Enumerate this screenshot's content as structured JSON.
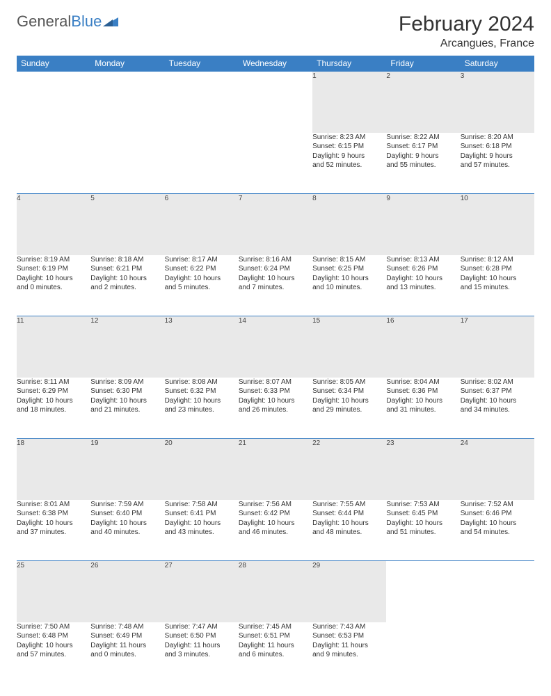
{
  "logo": {
    "part1": "General",
    "part2": "Blue"
  },
  "title": "February 2024",
  "subtitle": "Arcangues, France",
  "colors": {
    "header_bg": "#3a7fc4",
    "daynum_bg": "#e9e9e9",
    "border": "#3a7fc4"
  },
  "fontsize": {
    "title": 30,
    "subtitle": 16,
    "header": 12,
    "daynum": 12,
    "body": 10
  },
  "daysOfWeek": [
    "Sunday",
    "Monday",
    "Tuesday",
    "Wednesday",
    "Thursday",
    "Friday",
    "Saturday"
  ],
  "weeks": [
    [
      null,
      null,
      null,
      null,
      {
        "n": "1",
        "sr": "Sunrise: 8:23 AM",
        "ss": "Sunset: 6:15 PM",
        "d1": "Daylight: 9 hours",
        "d2": "and 52 minutes."
      },
      {
        "n": "2",
        "sr": "Sunrise: 8:22 AM",
        "ss": "Sunset: 6:17 PM",
        "d1": "Daylight: 9 hours",
        "d2": "and 55 minutes."
      },
      {
        "n": "3",
        "sr": "Sunrise: 8:20 AM",
        "ss": "Sunset: 6:18 PM",
        "d1": "Daylight: 9 hours",
        "d2": "and 57 minutes."
      }
    ],
    [
      {
        "n": "4",
        "sr": "Sunrise: 8:19 AM",
        "ss": "Sunset: 6:19 PM",
        "d1": "Daylight: 10 hours",
        "d2": "and 0 minutes."
      },
      {
        "n": "5",
        "sr": "Sunrise: 8:18 AM",
        "ss": "Sunset: 6:21 PM",
        "d1": "Daylight: 10 hours",
        "d2": "and 2 minutes."
      },
      {
        "n": "6",
        "sr": "Sunrise: 8:17 AM",
        "ss": "Sunset: 6:22 PM",
        "d1": "Daylight: 10 hours",
        "d2": "and 5 minutes."
      },
      {
        "n": "7",
        "sr": "Sunrise: 8:16 AM",
        "ss": "Sunset: 6:24 PM",
        "d1": "Daylight: 10 hours",
        "d2": "and 7 minutes."
      },
      {
        "n": "8",
        "sr": "Sunrise: 8:15 AM",
        "ss": "Sunset: 6:25 PM",
        "d1": "Daylight: 10 hours",
        "d2": "and 10 minutes."
      },
      {
        "n": "9",
        "sr": "Sunrise: 8:13 AM",
        "ss": "Sunset: 6:26 PM",
        "d1": "Daylight: 10 hours",
        "d2": "and 13 minutes."
      },
      {
        "n": "10",
        "sr": "Sunrise: 8:12 AM",
        "ss": "Sunset: 6:28 PM",
        "d1": "Daylight: 10 hours",
        "d2": "and 15 minutes."
      }
    ],
    [
      {
        "n": "11",
        "sr": "Sunrise: 8:11 AM",
        "ss": "Sunset: 6:29 PM",
        "d1": "Daylight: 10 hours",
        "d2": "and 18 minutes."
      },
      {
        "n": "12",
        "sr": "Sunrise: 8:09 AM",
        "ss": "Sunset: 6:30 PM",
        "d1": "Daylight: 10 hours",
        "d2": "and 21 minutes."
      },
      {
        "n": "13",
        "sr": "Sunrise: 8:08 AM",
        "ss": "Sunset: 6:32 PM",
        "d1": "Daylight: 10 hours",
        "d2": "and 23 minutes."
      },
      {
        "n": "14",
        "sr": "Sunrise: 8:07 AM",
        "ss": "Sunset: 6:33 PM",
        "d1": "Daylight: 10 hours",
        "d2": "and 26 minutes."
      },
      {
        "n": "15",
        "sr": "Sunrise: 8:05 AM",
        "ss": "Sunset: 6:34 PM",
        "d1": "Daylight: 10 hours",
        "d2": "and 29 minutes."
      },
      {
        "n": "16",
        "sr": "Sunrise: 8:04 AM",
        "ss": "Sunset: 6:36 PM",
        "d1": "Daylight: 10 hours",
        "d2": "and 31 minutes."
      },
      {
        "n": "17",
        "sr": "Sunrise: 8:02 AM",
        "ss": "Sunset: 6:37 PM",
        "d1": "Daylight: 10 hours",
        "d2": "and 34 minutes."
      }
    ],
    [
      {
        "n": "18",
        "sr": "Sunrise: 8:01 AM",
        "ss": "Sunset: 6:38 PM",
        "d1": "Daylight: 10 hours",
        "d2": "and 37 minutes."
      },
      {
        "n": "19",
        "sr": "Sunrise: 7:59 AM",
        "ss": "Sunset: 6:40 PM",
        "d1": "Daylight: 10 hours",
        "d2": "and 40 minutes."
      },
      {
        "n": "20",
        "sr": "Sunrise: 7:58 AM",
        "ss": "Sunset: 6:41 PM",
        "d1": "Daylight: 10 hours",
        "d2": "and 43 minutes."
      },
      {
        "n": "21",
        "sr": "Sunrise: 7:56 AM",
        "ss": "Sunset: 6:42 PM",
        "d1": "Daylight: 10 hours",
        "d2": "and 46 minutes."
      },
      {
        "n": "22",
        "sr": "Sunrise: 7:55 AM",
        "ss": "Sunset: 6:44 PM",
        "d1": "Daylight: 10 hours",
        "d2": "and 48 minutes."
      },
      {
        "n": "23",
        "sr": "Sunrise: 7:53 AM",
        "ss": "Sunset: 6:45 PM",
        "d1": "Daylight: 10 hours",
        "d2": "and 51 minutes."
      },
      {
        "n": "24",
        "sr": "Sunrise: 7:52 AM",
        "ss": "Sunset: 6:46 PM",
        "d1": "Daylight: 10 hours",
        "d2": "and 54 minutes."
      }
    ],
    [
      {
        "n": "25",
        "sr": "Sunrise: 7:50 AM",
        "ss": "Sunset: 6:48 PM",
        "d1": "Daylight: 10 hours",
        "d2": "and 57 minutes."
      },
      {
        "n": "26",
        "sr": "Sunrise: 7:48 AM",
        "ss": "Sunset: 6:49 PM",
        "d1": "Daylight: 11 hours",
        "d2": "and 0 minutes."
      },
      {
        "n": "27",
        "sr": "Sunrise: 7:47 AM",
        "ss": "Sunset: 6:50 PM",
        "d1": "Daylight: 11 hours",
        "d2": "and 3 minutes."
      },
      {
        "n": "28",
        "sr": "Sunrise: 7:45 AM",
        "ss": "Sunset: 6:51 PM",
        "d1": "Daylight: 11 hours",
        "d2": "and 6 minutes."
      },
      {
        "n": "29",
        "sr": "Sunrise: 7:43 AM",
        "ss": "Sunset: 6:53 PM",
        "d1": "Daylight: 11 hours",
        "d2": "and 9 minutes."
      },
      null,
      null
    ]
  ]
}
